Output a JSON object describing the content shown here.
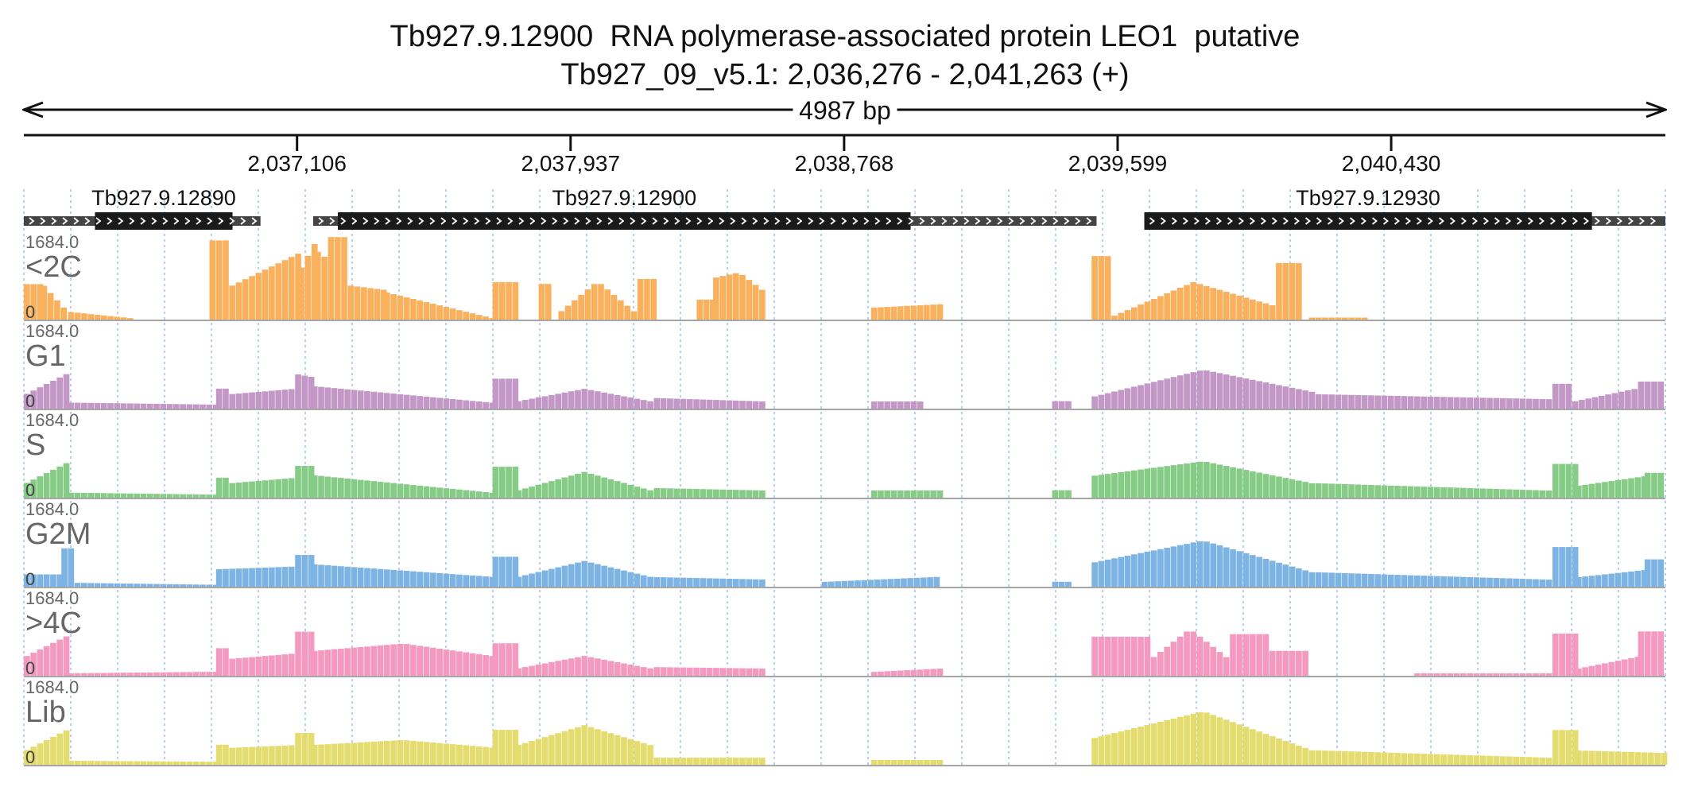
{
  "chart_data": {
    "type": "bar",
    "title": "Tb927.9.12900  RNA polymerase-associated protein LEO1  putative",
    "subtitle": "Tb927_09_v5.1: 2,036,276 - 2,041,263 (+)",
    "length_label": "4987 bp",
    "xlim": [
      2036276,
      2041263
    ],
    "x_ticks": [
      2037106,
      2037937,
      2038768,
      2039599,
      2040430
    ],
    "x_tick_labels": [
      "2,037,106",
      "2,037,937",
      "2,038,768",
      "2,039,599",
      "2,040,430"
    ],
    "grid": true,
    "genes": [
      {
        "name": "Tb927.9.12890",
        "utr_start": 2036276,
        "cds_start": 2036492,
        "cds_end": 2036910,
        "utr_end": 2036995
      },
      {
        "name": "Tb927.9.12900",
        "utr_start": 2037155,
        "cds_start": 2037230,
        "cds_end": 2038970,
        "utr_end": 2039535
      },
      {
        "name": "Tb927.9.12930",
        "utr_start": 2039680,
        "cds_start": 2039680,
        "cds_end": 2041040,
        "utr_end": 2041263
      }
    ],
    "bin_size_bp": 20,
    "series_bins": 250,
    "tracks": [
      {
        "name": "<2C",
        "max_label": "1684.0",
        "min_label": "0",
        "ymax": 1684.0,
        "color": "#f9b15e",
        "segments": [
          {
            "start": 2036276,
            "end": 2036328,
            "from": 720,
            "to": 720
          },
          {
            "start": 2036328,
            "end": 2036410,
            "from": 700,
            "to": 250
          },
          {
            "start": 2036410,
            "end": 2036600,
            "from": 150,
            "to": 30
          },
          {
            "start": 2036840,
            "end": 2036900,
            "from": 1650,
            "to": 1650
          },
          {
            "start": 2036900,
            "end": 2037110,
            "from": 700,
            "to": 1350
          },
          {
            "start": 2037110,
            "end": 2037160,
            "from": 1100,
            "to": 1600
          },
          {
            "start": 2037160,
            "end": 2037200,
            "from": 1400,
            "to": 1300
          },
          {
            "start": 2037200,
            "end": 2037260,
            "from": 1650,
            "to": 1650
          },
          {
            "start": 2037260,
            "end": 2037370,
            "from": 680,
            "to": 600
          },
          {
            "start": 2037370,
            "end": 2037700,
            "from": 540,
            "to": 30
          },
          {
            "start": 2037700,
            "end": 2037770,
            "from": 750,
            "to": 750
          },
          {
            "start": 2037840,
            "end": 2037880,
            "from": 750,
            "to": 750
          },
          {
            "start": 2037900,
            "end": 2038140,
            "from": 180,
            "to": 180,
            "peak": 820
          },
          {
            "start": 2038140,
            "end": 2038190,
            "from": 830,
            "to": 830
          },
          {
            "start": 2038320,
            "end": 2038370,
            "from": 400,
            "to": 400
          },
          {
            "start": 2038370,
            "end": 2038530,
            "from": 850,
            "to": 600,
            "peak": 950
          },
          {
            "start": 2038850,
            "end": 2039060,
            "from": 250,
            "to": 320
          },
          {
            "start": 2039520,
            "end": 2039580,
            "from": 1300,
            "to": 1300
          },
          {
            "start": 2039580,
            "end": 2040080,
            "from": 80,
            "to": 300,
            "peak": 780
          },
          {
            "start": 2040080,
            "end": 2040160,
            "from": 1150,
            "to": 1150
          },
          {
            "start": 2040180,
            "end": 2040360,
            "from": 40,
            "to": 40
          }
        ]
      },
      {
        "name": "G1",
        "max_label": "1684.0",
        "min_label": "0",
        "ymax": 1684.0,
        "color": "#c397c6",
        "segments": [
          {
            "start": 2036276,
            "end": 2036410,
            "from": 300,
            "to": 700
          },
          {
            "start": 2036410,
            "end": 2036860,
            "from": 120,
            "to": 80
          },
          {
            "start": 2036860,
            "end": 2036900,
            "from": 400,
            "to": 400
          },
          {
            "start": 2036900,
            "end": 2037100,
            "from": 300,
            "to": 400
          },
          {
            "start": 2037100,
            "end": 2037150,
            "from": 700,
            "to": 650
          },
          {
            "start": 2037150,
            "end": 2037700,
            "from": 450,
            "to": 120
          },
          {
            "start": 2037700,
            "end": 2037770,
            "from": 600,
            "to": 600
          },
          {
            "start": 2037770,
            "end": 2038190,
            "from": 150,
            "to": 150,
            "peak": 400
          },
          {
            "start": 2038190,
            "end": 2038530,
            "from": 220,
            "to": 150
          },
          {
            "start": 2038850,
            "end": 2039000,
            "from": 150,
            "to": 150
          },
          {
            "start": 2039400,
            "end": 2039460,
            "from": 150,
            "to": 150
          },
          {
            "start": 2039520,
            "end": 2040200,
            "from": 250,
            "to": 350,
            "peak": 800
          },
          {
            "start": 2040200,
            "end": 2040920,
            "from": 300,
            "to": 200
          },
          {
            "start": 2040920,
            "end": 2040980,
            "from": 500,
            "to": 500
          },
          {
            "start": 2040980,
            "end": 2041180,
            "from": 150,
            "to": 400
          },
          {
            "start": 2041180,
            "end": 2041263,
            "from": 550,
            "to": 550
          }
        ]
      },
      {
        "name": "S",
        "max_label": "1684.0",
        "min_label": "0",
        "ymax": 1684.0,
        "color": "#86cc86",
        "segments": [
          {
            "start": 2036276,
            "end": 2036410,
            "from": 300,
            "to": 700
          },
          {
            "start": 2036410,
            "end": 2036860,
            "from": 100,
            "to": 60
          },
          {
            "start": 2036860,
            "end": 2036900,
            "from": 400,
            "to": 400
          },
          {
            "start": 2036900,
            "end": 2037100,
            "from": 300,
            "to": 400
          },
          {
            "start": 2037100,
            "end": 2037150,
            "from": 650,
            "to": 650
          },
          {
            "start": 2037150,
            "end": 2037700,
            "from": 450,
            "to": 100
          },
          {
            "start": 2037700,
            "end": 2037770,
            "from": 620,
            "to": 620
          },
          {
            "start": 2037770,
            "end": 2038190,
            "from": 150,
            "to": 150,
            "peak": 520
          },
          {
            "start": 2038190,
            "end": 2038530,
            "from": 200,
            "to": 150
          },
          {
            "start": 2038850,
            "end": 2039060,
            "from": 150,
            "to": 150
          },
          {
            "start": 2039400,
            "end": 2039460,
            "from": 150,
            "to": 150
          },
          {
            "start": 2039520,
            "end": 2040200,
            "from": 450,
            "to": 300,
            "peak": 750
          },
          {
            "start": 2040200,
            "end": 2040920,
            "from": 300,
            "to": 150
          },
          {
            "start": 2040920,
            "end": 2040990,
            "from": 680,
            "to": 680
          },
          {
            "start": 2040990,
            "end": 2041200,
            "from": 250,
            "to": 450
          },
          {
            "start": 2041200,
            "end": 2041263,
            "from": 500,
            "to": 500
          }
        ]
      },
      {
        "name": "G2M",
        "max_label": "1684.0",
        "min_label": "0",
        "ymax": 1684.0,
        "color": "#7db4e3",
        "segments": [
          {
            "start": 2036276,
            "end": 2036390,
            "from": 250,
            "to": 250
          },
          {
            "start": 2036390,
            "end": 2036430,
            "from": 800,
            "to": 800
          },
          {
            "start": 2036430,
            "end": 2036860,
            "from": 80,
            "to": 40
          },
          {
            "start": 2036860,
            "end": 2037100,
            "from": 350,
            "to": 400
          },
          {
            "start": 2037100,
            "end": 2037150,
            "from": 650,
            "to": 650
          },
          {
            "start": 2037150,
            "end": 2037700,
            "from": 450,
            "to": 200
          },
          {
            "start": 2037700,
            "end": 2037770,
            "from": 600,
            "to": 600
          },
          {
            "start": 2037770,
            "end": 2038190,
            "from": 200,
            "to": 200,
            "peak": 520
          },
          {
            "start": 2038190,
            "end": 2038530,
            "from": 200,
            "to": 150
          },
          {
            "start": 2038700,
            "end": 2039060,
            "from": 100,
            "to": 200
          },
          {
            "start": 2039400,
            "end": 2039460,
            "from": 100,
            "to": 100
          },
          {
            "start": 2039520,
            "end": 2040200,
            "from": 500,
            "to": 300,
            "peak": 950
          },
          {
            "start": 2040200,
            "end": 2040920,
            "from": 300,
            "to": 150
          },
          {
            "start": 2040920,
            "end": 2040990,
            "from": 800,
            "to": 800
          },
          {
            "start": 2040990,
            "end": 2041200,
            "from": 200,
            "to": 350
          },
          {
            "start": 2041200,
            "end": 2041263,
            "from": 550,
            "to": 550
          }
        ]
      },
      {
        "name": ">4C",
        "max_label": "1684.0",
        "min_label": "0",
        "ymax": 1684.0,
        "color": "#f49ac1",
        "segments": [
          {
            "start": 2036276,
            "end": 2036410,
            "from": 400,
            "to": 800
          },
          {
            "start": 2036410,
            "end": 2036860,
            "from": 50,
            "to": 80
          },
          {
            "start": 2036860,
            "end": 2036900,
            "from": 550,
            "to": 550
          },
          {
            "start": 2036900,
            "end": 2037100,
            "from": 350,
            "to": 450
          },
          {
            "start": 2037100,
            "end": 2037150,
            "from": 900,
            "to": 900
          },
          {
            "start": 2037150,
            "end": 2037700,
            "from": 500,
            "to": 400,
            "peak": 650
          },
          {
            "start": 2037700,
            "end": 2037770,
            "from": 650,
            "to": 650
          },
          {
            "start": 2037770,
            "end": 2038190,
            "from": 150,
            "to": 150,
            "peak": 400
          },
          {
            "start": 2038190,
            "end": 2038530,
            "from": 180,
            "to": 150
          },
          {
            "start": 2038850,
            "end": 2039060,
            "from": 80,
            "to": 150
          },
          {
            "start": 2039520,
            "end": 2039700,
            "from": 800,
            "to": 800
          },
          {
            "start": 2039700,
            "end": 2039940,
            "from": 400,
            "to": 400,
            "peak": 1000
          },
          {
            "start": 2039940,
            "end": 2040060,
            "from": 850,
            "to": 850
          },
          {
            "start": 2040060,
            "end": 2040170,
            "from": 500,
            "to": 500
          },
          {
            "start": 2040500,
            "end": 2040920,
            "from": 50,
            "to": 50
          },
          {
            "start": 2040920,
            "end": 2040990,
            "from": 850,
            "to": 850
          },
          {
            "start": 2040990,
            "end": 2041180,
            "from": 150,
            "to": 400
          },
          {
            "start": 2041180,
            "end": 2041263,
            "from": 900,
            "to": 900
          }
        ]
      },
      {
        "name": "Lib",
        "max_label": "1684.0",
        "min_label": "0",
        "ymax": 1684.0,
        "color": "#e4dc6e",
        "segments": [
          {
            "start": 2036276,
            "end": 2036410,
            "from": 300,
            "to": 700
          },
          {
            "start": 2036410,
            "end": 2036860,
            "from": 80,
            "to": 60
          },
          {
            "start": 2036860,
            "end": 2036900,
            "from": 400,
            "to": 400
          },
          {
            "start": 2036900,
            "end": 2037100,
            "from": 350,
            "to": 400
          },
          {
            "start": 2037100,
            "end": 2037150,
            "from": 650,
            "to": 650
          },
          {
            "start": 2037150,
            "end": 2037700,
            "from": 400,
            "to": 350,
            "peak": 500
          },
          {
            "start": 2037700,
            "end": 2037770,
            "from": 700,
            "to": 700
          },
          {
            "start": 2037770,
            "end": 2038190,
            "from": 400,
            "to": 400,
            "peak": 800
          },
          {
            "start": 2038190,
            "end": 2038530,
            "from": 150,
            "to": 150
          },
          {
            "start": 2038850,
            "end": 2039060,
            "from": 100,
            "to": 100
          },
          {
            "start": 2039520,
            "end": 2040200,
            "from": 550,
            "to": 300,
            "peak": 1100
          },
          {
            "start": 2040200,
            "end": 2040920,
            "from": 300,
            "to": 150
          },
          {
            "start": 2040920,
            "end": 2040990,
            "from": 700,
            "to": 700
          },
          {
            "start": 2040990,
            "end": 2041263,
            "from": 300,
            "to": 250
          }
        ]
      }
    ]
  }
}
